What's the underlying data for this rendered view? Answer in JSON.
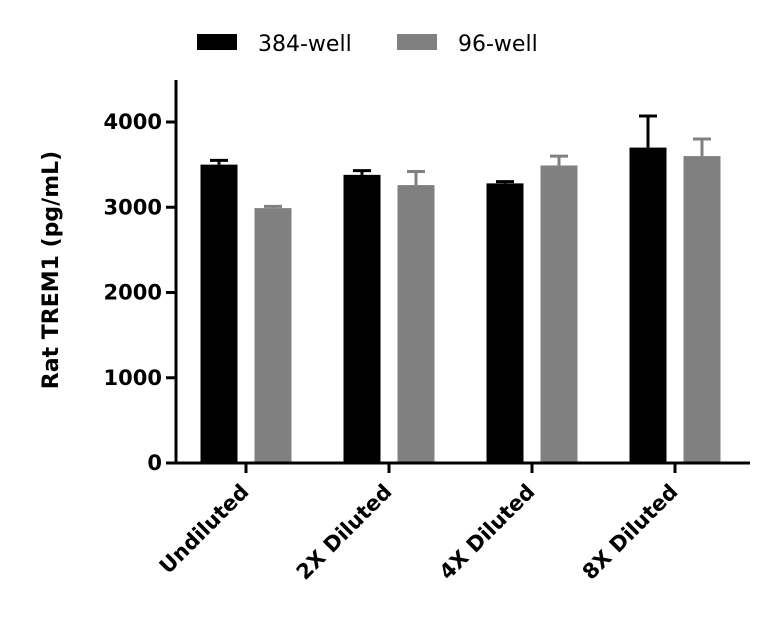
{
  "chart_data": {
    "type": "bar",
    "title": "",
    "xlabel": "",
    "ylabel": "Rat TREM1 (pg/mL)",
    "ylim": [
      0,
      4500
    ],
    "yticks": [
      0,
      1000,
      2000,
      3000,
      4000
    ],
    "categories": [
      "Undiluted",
      "2X Diluted",
      "4X Diluted",
      "8X Diluted"
    ],
    "series": [
      {
        "name": "384-well",
        "color": "#000000",
        "values": [
          3500,
          3380,
          3280,
          3700
        ],
        "errors": [
          50,
          50,
          20,
          370
        ]
      },
      {
        "name": "96-well",
        "color": "#808080",
        "values": [
          2990,
          3260,
          3490,
          3600
        ],
        "errors": [
          20,
          160,
          110,
          200
        ]
      }
    ],
    "legend": "top-center",
    "grid": false
  }
}
